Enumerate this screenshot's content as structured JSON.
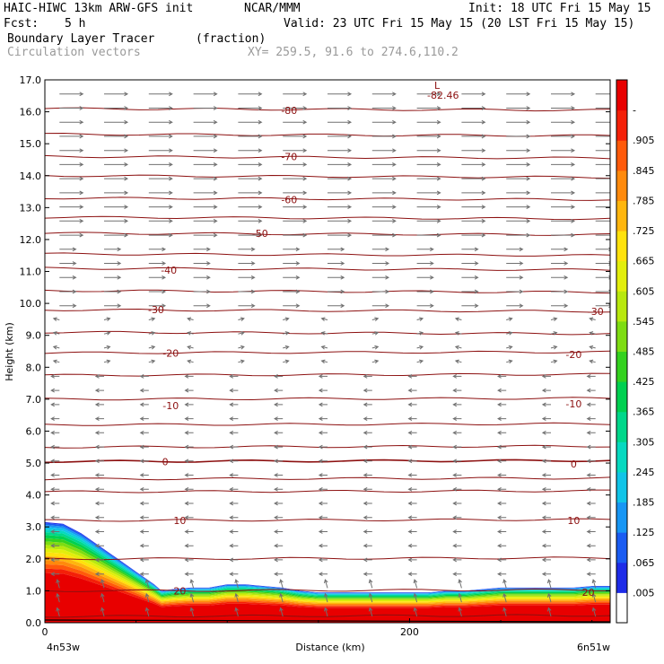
{
  "header": {
    "model": "HAIC-HIWC 13km ARW-GFS init",
    "org": "NCAR/MMM",
    "init": "Init: 18 UTC Fri 15 May 15",
    "fcst_label": "Fcst:",
    "fcst_value": "5 h",
    "valid": "Valid: 23 UTC Fri 15 May 15 (20 LST Fri 15 May 15)",
    "field1_name": "Boundary Layer Tracer",
    "field1_unit": "(fraction)",
    "field2_name": "Circulation vectors",
    "xy": "XY= 259.5, 91.6 to 274.6,110.2"
  },
  "chart_data": {
    "type": "heatmap",
    "xlabel": "Distance (km)",
    "ylabel": "Height (km)",
    "xlim": [
      0,
      310
    ],
    "ylim": [
      0,
      17
    ],
    "x_ticks": [
      "0",
      "200"
    ],
    "x_ticks_values": [
      0,
      200
    ],
    "x_end_labels": [
      "4n53w",
      "6n51w"
    ],
    "y_ticks": [
      "0.0",
      "1.0",
      "2.0",
      "3.0",
      "4.0",
      "5.0",
      "6.0",
      "7.0",
      "8.0",
      "9.0",
      "10.0",
      "11.0",
      "12.0",
      "13.0",
      "14.0",
      "15.0",
      "16.0",
      "17.0"
    ],
    "colorbar_labels": [
      ".005",
      ".065",
      ".125",
      ".185",
      ".245",
      ".305",
      ".365",
      ".425",
      ".485",
      ".545",
      ".605",
      ".665",
      ".725",
      ".785",
      ".845",
      ".905",
      "-"
    ],
    "colorbar_colors": [
      "#ffffff",
      "#1e2ce8",
      "#1a5cf2",
      "#1796f4",
      "#10c4e8",
      "#06d9c0",
      "#00d78a",
      "#00d050",
      "#34d11e",
      "#7edc12",
      "#b8e80e",
      "#e2ee0c",
      "#ffe20c",
      "#ffb60e",
      "#ff8a0c",
      "#ff5a0a",
      "#f42008",
      "#e80000"
    ],
    "contour_color": "#8c1010",
    "contour_labels": [
      {
        "text": "-80",
        "x": 134,
        "y": 16.05
      },
      {
        "text": "-70",
        "x": 134,
        "y": 14.6
      },
      {
        "text": "-60",
        "x": 134,
        "y": 13.25
      },
      {
        "text": "-50",
        "x": 118,
        "y": 12.2
      },
      {
        "text": "-40",
        "x": 68,
        "y": 11.05
      },
      {
        "text": "-30",
        "x": 61,
        "y": 9.8
      },
      {
        "text": "-30",
        "x": 302,
        "y": 9.75
      },
      {
        "text": "-20",
        "x": 69,
        "y": 8.45
      },
      {
        "text": "-20",
        "x": 290,
        "y": 8.4
      },
      {
        "text": "-10",
        "x": 69,
        "y": 6.8
      },
      {
        "text": "-10",
        "x": 290,
        "y": 6.85
      },
      {
        "text": "0",
        "x": 66,
        "y": 5.05
      },
      {
        "text": "0",
        "x": 290,
        "y": 4.98
      },
      {
        "text": "10",
        "x": 74,
        "y": 3.2
      },
      {
        "text": "10",
        "x": 290,
        "y": 3.2
      },
      {
        "text": "20",
        "x": 74,
        "y": 1.0
      },
      {
        "text": "20",
        "x": 298,
        "y": 0.95
      }
    ],
    "contour_levels_y": [
      16.1,
      15.3,
      14.6,
      14.0,
      13.3,
      12.7,
      12.2,
      11.55,
      11.1,
      10.4,
      9.8,
      9.1,
      8.45,
      7.75,
      7.0,
      6.2,
      5.5,
      5.05,
      4.5,
      4.1,
      3.2,
      2.0,
      1.0,
      0.2
    ],
    "low_marker": {
      "symbol": "L",
      "value": "-82.46",
      "x": 222,
      "y": 16.8
    },
    "tracer_top_profile": {
      "x": [
        0,
        10,
        20,
        30,
        40,
        50,
        60,
        64,
        70,
        80,
        90,
        100,
        110,
        120,
        130,
        140,
        150,
        160,
        170,
        180,
        190,
        200,
        210,
        220,
        230,
        240,
        250,
        260,
        270,
        280,
        290,
        300,
        310
      ],
      "height_km": [
        3.15,
        3.1,
        2.8,
        2.4,
        2.0,
        1.6,
        1.2,
        1.0,
        1.05,
        1.1,
        1.1,
        1.2,
        1.2,
        1.15,
        1.1,
        1.0,
        0.95,
        0.95,
        0.95,
        0.95,
        0.95,
        0.95,
        0.95,
        1.0,
        1.0,
        1.05,
        1.1,
        1.1,
        1.1,
        1.1,
        1.1,
        1.15,
        1.15
      ]
    }
  }
}
